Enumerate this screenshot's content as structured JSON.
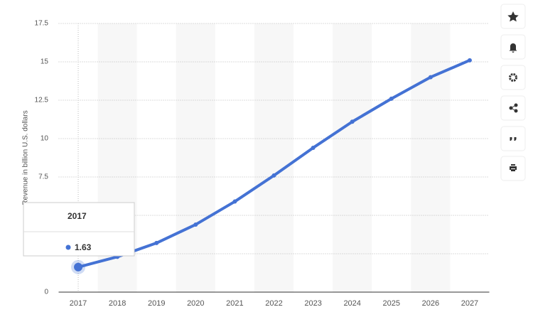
{
  "chart_data": {
    "type": "line",
    "y_label": "Revenue in billion U.S. dollars",
    "categories": [
      "2017",
      "2018",
      "2019",
      "2020",
      "2021",
      "2022",
      "2023",
      "2024",
      "2025",
      "2026",
      "2027"
    ],
    "series": [
      {
        "name": "Revenue",
        "color": "#4472d4",
        "values": [
          1.63,
          2.3,
          3.2,
          4.4,
          5.9,
          7.6,
          9.4,
          11.1,
          12.6,
          14.0,
          15.1
        ]
      }
    ],
    "ylim": [
      0,
      17.5
    ],
    "yticks": [
      0,
      2.5,
      5,
      7.5,
      10,
      12.5,
      15,
      17.5
    ],
    "grid": true
  }
}
